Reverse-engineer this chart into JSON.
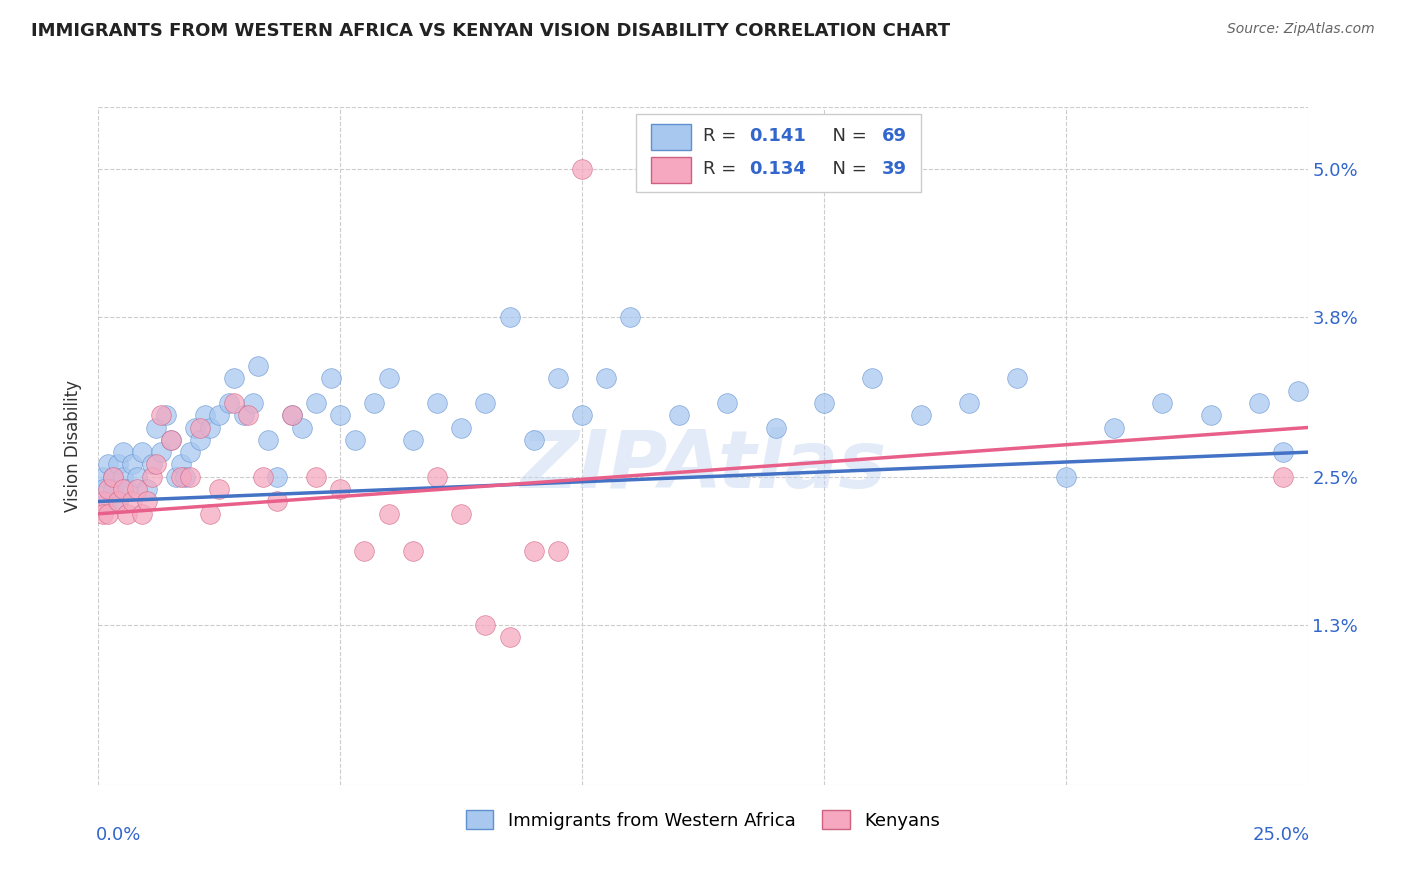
{
  "title": "IMMIGRANTS FROM WESTERN AFRICA VS KENYAN VISION DISABILITY CORRELATION CHART",
  "source": "Source: ZipAtlas.com",
  "ylabel": "Vision Disability",
  "watermark": "ZIPAtlas",
  "color_blue": "#A8C8F0",
  "color_pink": "#F5A8C0",
  "color_blue_edge": "#6090D0",
  "color_pink_edge": "#D06080",
  "color_trendline_blue": "#4472C4",
  "color_trendline_pink": "#E8608A",
  "color_axis_text": "#3366CC",
  "color_grid": "#CCCCCC",
  "ytick_positions": [
    0.0,
    0.013,
    0.025,
    0.038,
    0.05
  ],
  "ytick_labels": [
    "",
    "1.3%",
    "2.5%",
    "3.8%",
    "5.0%"
  ],
  "xlim": [
    0.0,
    0.25
  ],
  "ylim": [
    0.0,
    0.055
  ],
  "blue_x": [
    0.001,
    0.001,
    0.002,
    0.002,
    0.003,
    0.003,
    0.004,
    0.004,
    0.005,
    0.005,
    0.006,
    0.007,
    0.008,
    0.009,
    0.01,
    0.011,
    0.012,
    0.013,
    0.014,
    0.015,
    0.016,
    0.017,
    0.018,
    0.019,
    0.02,
    0.021,
    0.022,
    0.023,
    0.025,
    0.027,
    0.028,
    0.03,
    0.032,
    0.033,
    0.035,
    0.037,
    0.04,
    0.042,
    0.045,
    0.048,
    0.05,
    0.053,
    0.057,
    0.06,
    0.065,
    0.07,
    0.075,
    0.08,
    0.085,
    0.09,
    0.095,
    0.1,
    0.105,
    0.11,
    0.12,
    0.13,
    0.14,
    0.15,
    0.16,
    0.17,
    0.18,
    0.19,
    0.2,
    0.21,
    0.22,
    0.23,
    0.24,
    0.245,
    0.248
  ],
  "blue_y": [
    0.025,
    0.024,
    0.026,
    0.023,
    0.025,
    0.024,
    0.026,
    0.023,
    0.027,
    0.025,
    0.024,
    0.026,
    0.025,
    0.027,
    0.024,
    0.026,
    0.029,
    0.027,
    0.03,
    0.028,
    0.025,
    0.026,
    0.025,
    0.027,
    0.029,
    0.028,
    0.03,
    0.029,
    0.03,
    0.031,
    0.033,
    0.03,
    0.031,
    0.034,
    0.028,
    0.025,
    0.03,
    0.029,
    0.031,
    0.033,
    0.03,
    0.028,
    0.031,
    0.033,
    0.028,
    0.031,
    0.029,
    0.031,
    0.038,
    0.028,
    0.033,
    0.03,
    0.033,
    0.038,
    0.03,
    0.031,
    0.029,
    0.031,
    0.033,
    0.03,
    0.031,
    0.033,
    0.025,
    0.029,
    0.031,
    0.03,
    0.031,
    0.027,
    0.032
  ],
  "pink_x": [
    0.001,
    0.001,
    0.002,
    0.002,
    0.003,
    0.004,
    0.005,
    0.006,
    0.007,
    0.008,
    0.009,
    0.01,
    0.011,
    0.012,
    0.013,
    0.015,
    0.017,
    0.019,
    0.021,
    0.023,
    0.025,
    0.028,
    0.031,
    0.034,
    0.037,
    0.04,
    0.045,
    0.05,
    0.055,
    0.06,
    0.065,
    0.07,
    0.075,
    0.08,
    0.085,
    0.09,
    0.095,
    0.1,
    0.245
  ],
  "pink_y": [
    0.023,
    0.022,
    0.024,
    0.022,
    0.025,
    0.023,
    0.024,
    0.022,
    0.023,
    0.024,
    0.022,
    0.023,
    0.025,
    0.026,
    0.03,
    0.028,
    0.025,
    0.025,
    0.029,
    0.022,
    0.024,
    0.031,
    0.03,
    0.025,
    0.023,
    0.03,
    0.025,
    0.024,
    0.019,
    0.022,
    0.019,
    0.025,
    0.022,
    0.013,
    0.012,
    0.019,
    0.019,
    0.05,
    0.025
  ],
  "trendline_blue_start": 0.023,
  "trendline_blue_end": 0.027,
  "trendline_pink_start": 0.022,
  "trendline_pink_end": 0.029
}
